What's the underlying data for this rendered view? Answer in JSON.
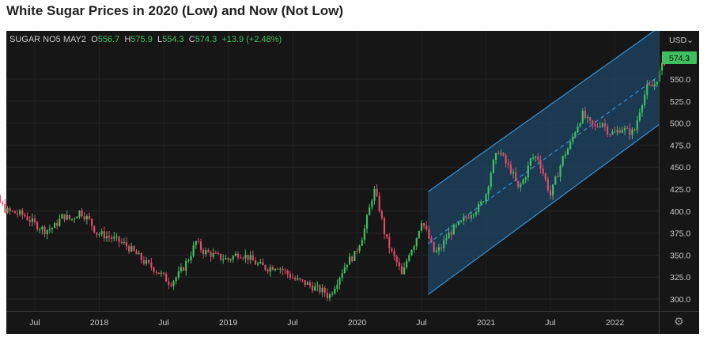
{
  "page": {
    "heading": "White Sugar Prices in 2020 (Low) and Now (Not Low)"
  },
  "legend": {
    "symbol": "SUGAR NO5 MAY2",
    "o_label": "O",
    "o_value": "556.7",
    "h_label": "H",
    "h_value": "575.9",
    "l_label": "L",
    "l_value": "554.3",
    "c_label": "C",
    "c_value": "574.3",
    "change": "+13.9 (+2.48%)"
  },
  "currency_selector": "USD",
  "icons": {
    "currency_dropdown": "chevron-down-icon",
    "settings": "gear-icon"
  },
  "colors": {
    "up": "#3fbf5f",
    "down": "#e0496a",
    "channel_line": "#3a8fd6",
    "channel_fill": "#1e4766",
    "price_badge": "#3fbf5f"
  },
  "chart_data": {
    "type": "candlestick",
    "title": "",
    "xlabel": "",
    "ylabel": "",
    "y_axis_side": "right",
    "ylim": [
      285,
      590
    ],
    "y_ticks": [
      "300.0",
      "325.0",
      "350.0",
      "375.0",
      "400.0",
      "425.0",
      "450.0",
      "475.0",
      "500.0",
      "525.0",
      "550.0"
    ],
    "x_ticks": [
      {
        "label": "Jul",
        "t": 2017.5
      },
      {
        "label": "2018",
        "t": 2018.0
      },
      {
        "label": "Jul",
        "t": 2018.5
      },
      {
        "label": "2019",
        "t": 2019.0
      },
      {
        "label": "Jul",
        "t": 2019.5
      },
      {
        "label": "2020",
        "t": 2020.0
      },
      {
        "label": "Jul",
        "t": 2020.5
      },
      {
        "label": "2021",
        "t": 2021.0
      },
      {
        "label": "Jul",
        "t": 2021.5
      },
      {
        "label": "2022",
        "t": 2022.0
      }
    ],
    "xlim": [
      2017.0,
      2022.55
    ],
    "last_price": "574.3",
    "close_path": [
      [
        2017.0,
        485
      ],
      [
        2017.05,
        470
      ],
      [
        2017.12,
        445
      ],
      [
        2017.2,
        415
      ],
      [
        2017.28,
        400
      ],
      [
        2017.35,
        398
      ],
      [
        2017.42,
        395
      ],
      [
        2017.5,
        385
      ],
      [
        2017.58,
        378
      ],
      [
        2017.65,
        382
      ],
      [
        2017.72,
        395
      ],
      [
        2017.78,
        390
      ],
      [
        2017.85,
        400
      ],
      [
        2017.92,
        390
      ],
      [
        2017.98,
        375
      ],
      [
        2018.05,
        372
      ],
      [
        2018.12,
        368
      ],
      [
        2018.2,
        362
      ],
      [
        2018.28,
        352
      ],
      [
        2018.35,
        342
      ],
      [
        2018.42,
        335
      ],
      [
        2018.48,
        328
      ],
      [
        2018.55,
        318
      ],
      [
        2018.6,
        325
      ],
      [
        2018.65,
        335
      ],
      [
        2018.7,
        348
      ],
      [
        2018.75,
        365
      ],
      [
        2018.8,
        355
      ],
      [
        2018.85,
        352
      ],
      [
        2018.92,
        348
      ],
      [
        2019.0,
        345
      ],
      [
        2019.08,
        352
      ],
      [
        2019.15,
        348
      ],
      [
        2019.22,
        340
      ],
      [
        2019.3,
        335
      ],
      [
        2019.38,
        338
      ],
      [
        2019.45,
        330
      ],
      [
        2019.52,
        322
      ],
      [
        2019.6,
        318
      ],
      [
        2019.68,
        312
      ],
      [
        2019.75,
        308
      ],
      [
        2019.78,
        302
      ],
      [
        2019.85,
        322
      ],
      [
        2019.92,
        342
      ],
      [
        2019.98,
        350
      ],
      [
        2020.05,
        375
      ],
      [
        2020.1,
        405
      ],
      [
        2020.13,
        425
      ],
      [
        2020.17,
        405
      ],
      [
        2020.22,
        370
      ],
      [
        2020.27,
        352
      ],
      [
        2020.32,
        338
      ],
      [
        2020.35,
        325
      ],
      [
        2020.4,
        352
      ],
      [
        2020.45,
        365
      ],
      [
        2020.5,
        390
      ],
      [
        2020.55,
        372
      ],
      [
        2020.6,
        352
      ],
      [
        2020.65,
        358
      ],
      [
        2020.7,
        372
      ],
      [
        2020.75,
        380
      ],
      [
        2020.8,
        385
      ],
      [
        2020.88,
        398
      ],
      [
        2020.95,
        405
      ],
      [
        2021.0,
        420
      ],
      [
        2021.05,
        452
      ],
      [
        2021.1,
        470
      ],
      [
        2021.15,
        455
      ],
      [
        2021.2,
        445
      ],
      [
        2021.25,
        425
      ],
      [
        2021.3,
        438
      ],
      [
        2021.35,
        460
      ],
      [
        2021.4,
        462
      ],
      [
        2021.45,
        440
      ],
      [
        2021.5,
        418
      ],
      [
        2021.55,
        440
      ],
      [
        2021.6,
        462
      ],
      [
        2021.65,
        475
      ],
      [
        2021.7,
        495
      ],
      [
        2021.75,
        510
      ],
      [
        2021.8,
        500
      ],
      [
        2021.85,
        495
      ],
      [
        2021.9,
        502
      ],
      [
        2021.95,
        490
      ],
      [
        2022.0,
        488
      ],
      [
        2022.05,
        495
      ],
      [
        2022.1,
        490
      ],
      [
        2022.15,
        490
      ],
      [
        2022.2,
        520
      ],
      [
        2022.25,
        540
      ],
      [
        2022.3,
        542
      ],
      [
        2022.36,
        562
      ],
      [
        2022.4,
        574.3
      ]
    ],
    "channel": {
      "upper": [
        [
          2020.55,
          422
        ],
        [
          2022.45,
          620
        ]
      ],
      "mid": [
        [
          2020.55,
          363
        ],
        [
          2022.45,
          565
        ]
      ],
      "lower": [
        [
          2020.55,
          305
        ],
        [
          2022.45,
          510
        ]
      ]
    }
  }
}
